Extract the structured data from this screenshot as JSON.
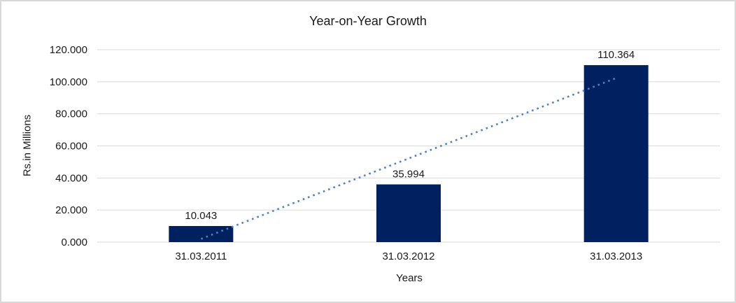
{
  "chart_data": {
    "type": "bar",
    "title": "Year-on-Year Growth",
    "xlabel": "Years",
    "ylabel": "Rs.in Millions",
    "categories": [
      "31.03.2011",
      "31.03.2012",
      "31.03.2013"
    ],
    "values": [
      10.043,
      35.994,
      110.364
    ],
    "data_labels": [
      "10.043",
      "35.994",
      "110.364"
    ],
    "ytick_values": [
      0,
      20,
      40,
      60,
      80,
      100,
      120
    ],
    "ytick_labels": [
      "0.000",
      "20.000",
      "40.000",
      "60.000",
      "80.000",
      "100.000",
      "120.000"
    ],
    "ylim": [
      0,
      120
    ],
    "grid": true,
    "legend": "none",
    "trendline": {
      "type": "linear",
      "style": "dotted",
      "y_at_first_category": 2.0,
      "y_at_last_category": 102.3,
      "color": "#4F81BD"
    },
    "colors": {
      "bar": "#002060",
      "gridline": "#D9D9D9",
      "axis_line": "#D9D9D9",
      "text": "#1a1a1a",
      "background": "#FFFFFF",
      "border": "#D8D8D8"
    }
  }
}
